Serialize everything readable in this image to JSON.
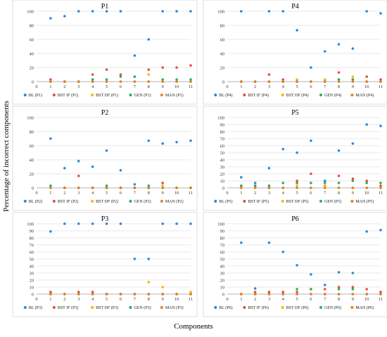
{
  "figure": {
    "ylabel": "Percentage of incorrect components",
    "xlabel": "Components"
  },
  "series_colors": [
    "#2e86de",
    "#e74c3c",
    "#f5b800",
    "#27ae60",
    "#e67e22"
  ],
  "chart_data": [
    {
      "type": "scatter",
      "title": "P1",
      "x": [
        1,
        2,
        3,
        4,
        5,
        6,
        7,
        8,
        9,
        10,
        11
      ],
      "xlim": [
        0,
        11
      ],
      "ylim": [
        0,
        100
      ],
      "yticks": [
        0,
        20,
        40,
        60,
        80,
        100
      ],
      "grid": true,
      "legend": "bottom",
      "series": [
        {
          "name": "BL (P1)",
          "values": [
            90,
            93,
            100,
            100,
            100,
            100,
            37,
            60,
            100,
            100,
            100
          ]
        },
        {
          "name": "BST IF (P1)",
          "values": [
            3,
            0,
            0,
            10,
            17,
            10,
            7,
            17,
            20,
            20,
            23
          ]
        },
        {
          "name": "BST DF (P1)",
          "values": [
            0,
            0,
            0,
            0,
            0,
            0,
            0,
            10,
            0,
            0,
            0
          ]
        },
        {
          "name": "GEN (P1)",
          "values": [
            0,
            0,
            0,
            3,
            3,
            7,
            7,
            0,
            3,
            3,
            3
          ]
        },
        {
          "name": "MAN (P1)",
          "values": [
            0,
            0,
            0,
            0,
            0,
            0,
            0,
            0,
            0,
            0,
            0
          ]
        }
      ]
    },
    {
      "type": "scatter",
      "title": "P4",
      "x": [
        1,
        2,
        3,
        4,
        5,
        6,
        7,
        8,
        9,
        10,
        11
      ],
      "xlim": [
        0,
        11
      ],
      "ylim": [
        0,
        100
      ],
      "yticks": [
        0,
        20,
        40,
        60,
        80,
        100
      ],
      "grid": true,
      "legend": "bottom",
      "series": [
        {
          "name": "BL (P4)",
          "values": [
            100,
            null,
            100,
            100,
            73,
            20,
            43,
            53,
            47,
            100,
            97
          ]
        },
        {
          "name": "BST IF (P4)",
          "values": [
            0,
            0,
            10,
            3,
            0,
            0,
            0,
            13,
            3,
            7,
            3
          ]
        },
        {
          "name": "BST DF (P4)",
          "values": [
            0,
            0,
            0,
            0,
            3,
            0,
            3,
            3,
            7,
            0,
            0
          ]
        },
        {
          "name": "GEN (P4)",
          "values": [
            0,
            0,
            0,
            0,
            0,
            0,
            0,
            3,
            3,
            0,
            0
          ]
        },
        {
          "name": "MAN (P4)",
          "values": [
            0,
            0,
            0,
            0,
            0,
            0,
            0,
            0,
            0,
            0,
            0
          ]
        }
      ]
    },
    {
      "type": "scatter",
      "title": "P2",
      "x": [
        1,
        2,
        3,
        4,
        5,
        6,
        7,
        8,
        9,
        10,
        11
      ],
      "xlim": [
        0,
        11
      ],
      "ylim": [
        0,
        100
      ],
      "yticks": [
        0,
        20,
        40,
        60,
        80,
        100
      ],
      "grid": true,
      "legend": "bottom",
      "series": [
        {
          "name": "BL (P2)",
          "values": [
            70,
            28,
            38,
            30,
            53,
            25,
            5,
            67,
            63,
            65,
            67
          ]
        },
        {
          "name": "BST IF (P2)",
          "values": [
            0,
            0,
            17,
            0,
            0,
            0,
            0,
            0,
            7,
            0,
            0
          ]
        },
        {
          "name": "BST DF (P2)",
          "values": [
            0,
            0,
            0,
            0,
            0,
            0,
            0,
            0,
            3,
            0,
            0
          ]
        },
        {
          "name": "GEN (P2)",
          "values": [
            3,
            0,
            0,
            0,
            3,
            0,
            0,
            3,
            0,
            0,
            0
          ]
        },
        {
          "name": "MAN (P2)",
          "values": [
            0,
            0,
            0,
            0,
            0,
            0,
            0,
            0,
            0,
            0,
            0
          ]
        }
      ]
    },
    {
      "type": "scatter",
      "title": "P5",
      "x": [
        1,
        2,
        3,
        4,
        5,
        6,
        7,
        8,
        9,
        10,
        11
      ],
      "xlim": [
        0,
        11
      ],
      "ylim": [
        0,
        100
      ],
      "yticks": [
        0,
        10,
        20,
        30,
        40,
        50,
        60,
        70,
        80,
        90,
        100
      ],
      "grid": true,
      "legend": "bottom",
      "series": [
        {
          "name": "BL (P5)",
          "values": [
            15,
            7,
            28,
            55,
            50,
            67,
            10,
            53,
            63,
            90,
            88
          ]
        },
        {
          "name": "BST IF (P5)",
          "values": [
            3,
            3,
            0,
            0,
            10,
            20,
            3,
            17,
            13,
            10,
            3
          ]
        },
        {
          "name": "BST DF (P5)",
          "values": [
            0,
            0,
            0,
            0,
            3,
            0,
            3,
            0,
            0,
            0,
            0
          ]
        },
        {
          "name": "GEN (P5)",
          "values": [
            3,
            3,
            3,
            7,
            7,
            7,
            7,
            7,
            10,
            7,
            7
          ]
        },
        {
          "name": "MAN (P5)",
          "values": [
            0,
            0,
            0,
            0,
            0,
            0,
            0,
            0,
            0,
            0,
            0
          ]
        }
      ]
    },
    {
      "type": "scatter",
      "title": "P3",
      "x": [
        1,
        2,
        3,
        4,
        5,
        6,
        7,
        8,
        9,
        10,
        11
      ],
      "xlim": [
        0,
        11
      ],
      "ylim": [
        0,
        100
      ],
      "yticks": [
        0,
        10,
        20,
        30,
        40,
        50,
        60,
        70,
        80,
        90,
        100
      ],
      "grid": true,
      "legend": "bottom",
      "series": [
        {
          "name": "BL (P3)",
          "values": [
            89,
            100,
            100,
            100,
            100,
            100,
            50,
            50,
            100,
            100,
            100
          ]
        },
        {
          "name": "BST IF (P3)",
          "values": [
            3,
            0,
            3,
            3,
            0,
            0,
            0,
            0,
            0,
            0,
            0
          ]
        },
        {
          "name": "BST DF (P3)",
          "values": [
            0,
            0,
            0,
            0,
            0,
            0,
            0,
            17,
            10,
            0,
            3
          ]
        },
        {
          "name": "GEN (P3)",
          "values": [
            0,
            0,
            0,
            0,
            0,
            0,
            0,
            0,
            0,
            0,
            0
          ]
        },
        {
          "name": "MAN (P3)",
          "values": [
            0,
            0,
            0,
            0,
            0,
            0,
            0,
            0,
            0,
            0,
            0
          ]
        }
      ]
    },
    {
      "type": "scatter",
      "title": "P6",
      "x": [
        1,
        2,
        3,
        4,
        5,
        6,
        7,
        8,
        9,
        10,
        11
      ],
      "xlim": [
        0,
        11
      ],
      "ylim": [
        0,
        100
      ],
      "yticks": [
        0,
        10,
        20,
        30,
        40,
        50,
        60,
        70,
        80,
        90,
        100
      ],
      "grid": true,
      "legend": "bottom",
      "series": [
        {
          "name": "BL (P6)",
          "values": [
            73,
            8,
            73,
            60,
            41,
            28,
            13,
            31,
            30,
            89,
            91
          ]
        },
        {
          "name": "BST IF (P6)",
          "values": [
            0,
            3,
            3,
            3,
            3,
            7,
            7,
            10,
            10,
            7,
            3
          ]
        },
        {
          "name": "BST DF (P6)",
          "values": [
            0,
            0,
            0,
            0,
            0,
            0,
            0,
            0,
            0,
            0,
            0
          ]
        },
        {
          "name": "GEN (P6)",
          "values": [
            0,
            0,
            0,
            0,
            7,
            7,
            0,
            7,
            7,
            0,
            0
          ]
        },
        {
          "name": "MAN (P6)",
          "values": [
            0,
            0,
            0,
            0,
            0,
            0,
            0,
            0,
            0,
            0,
            0
          ]
        }
      ]
    }
  ]
}
